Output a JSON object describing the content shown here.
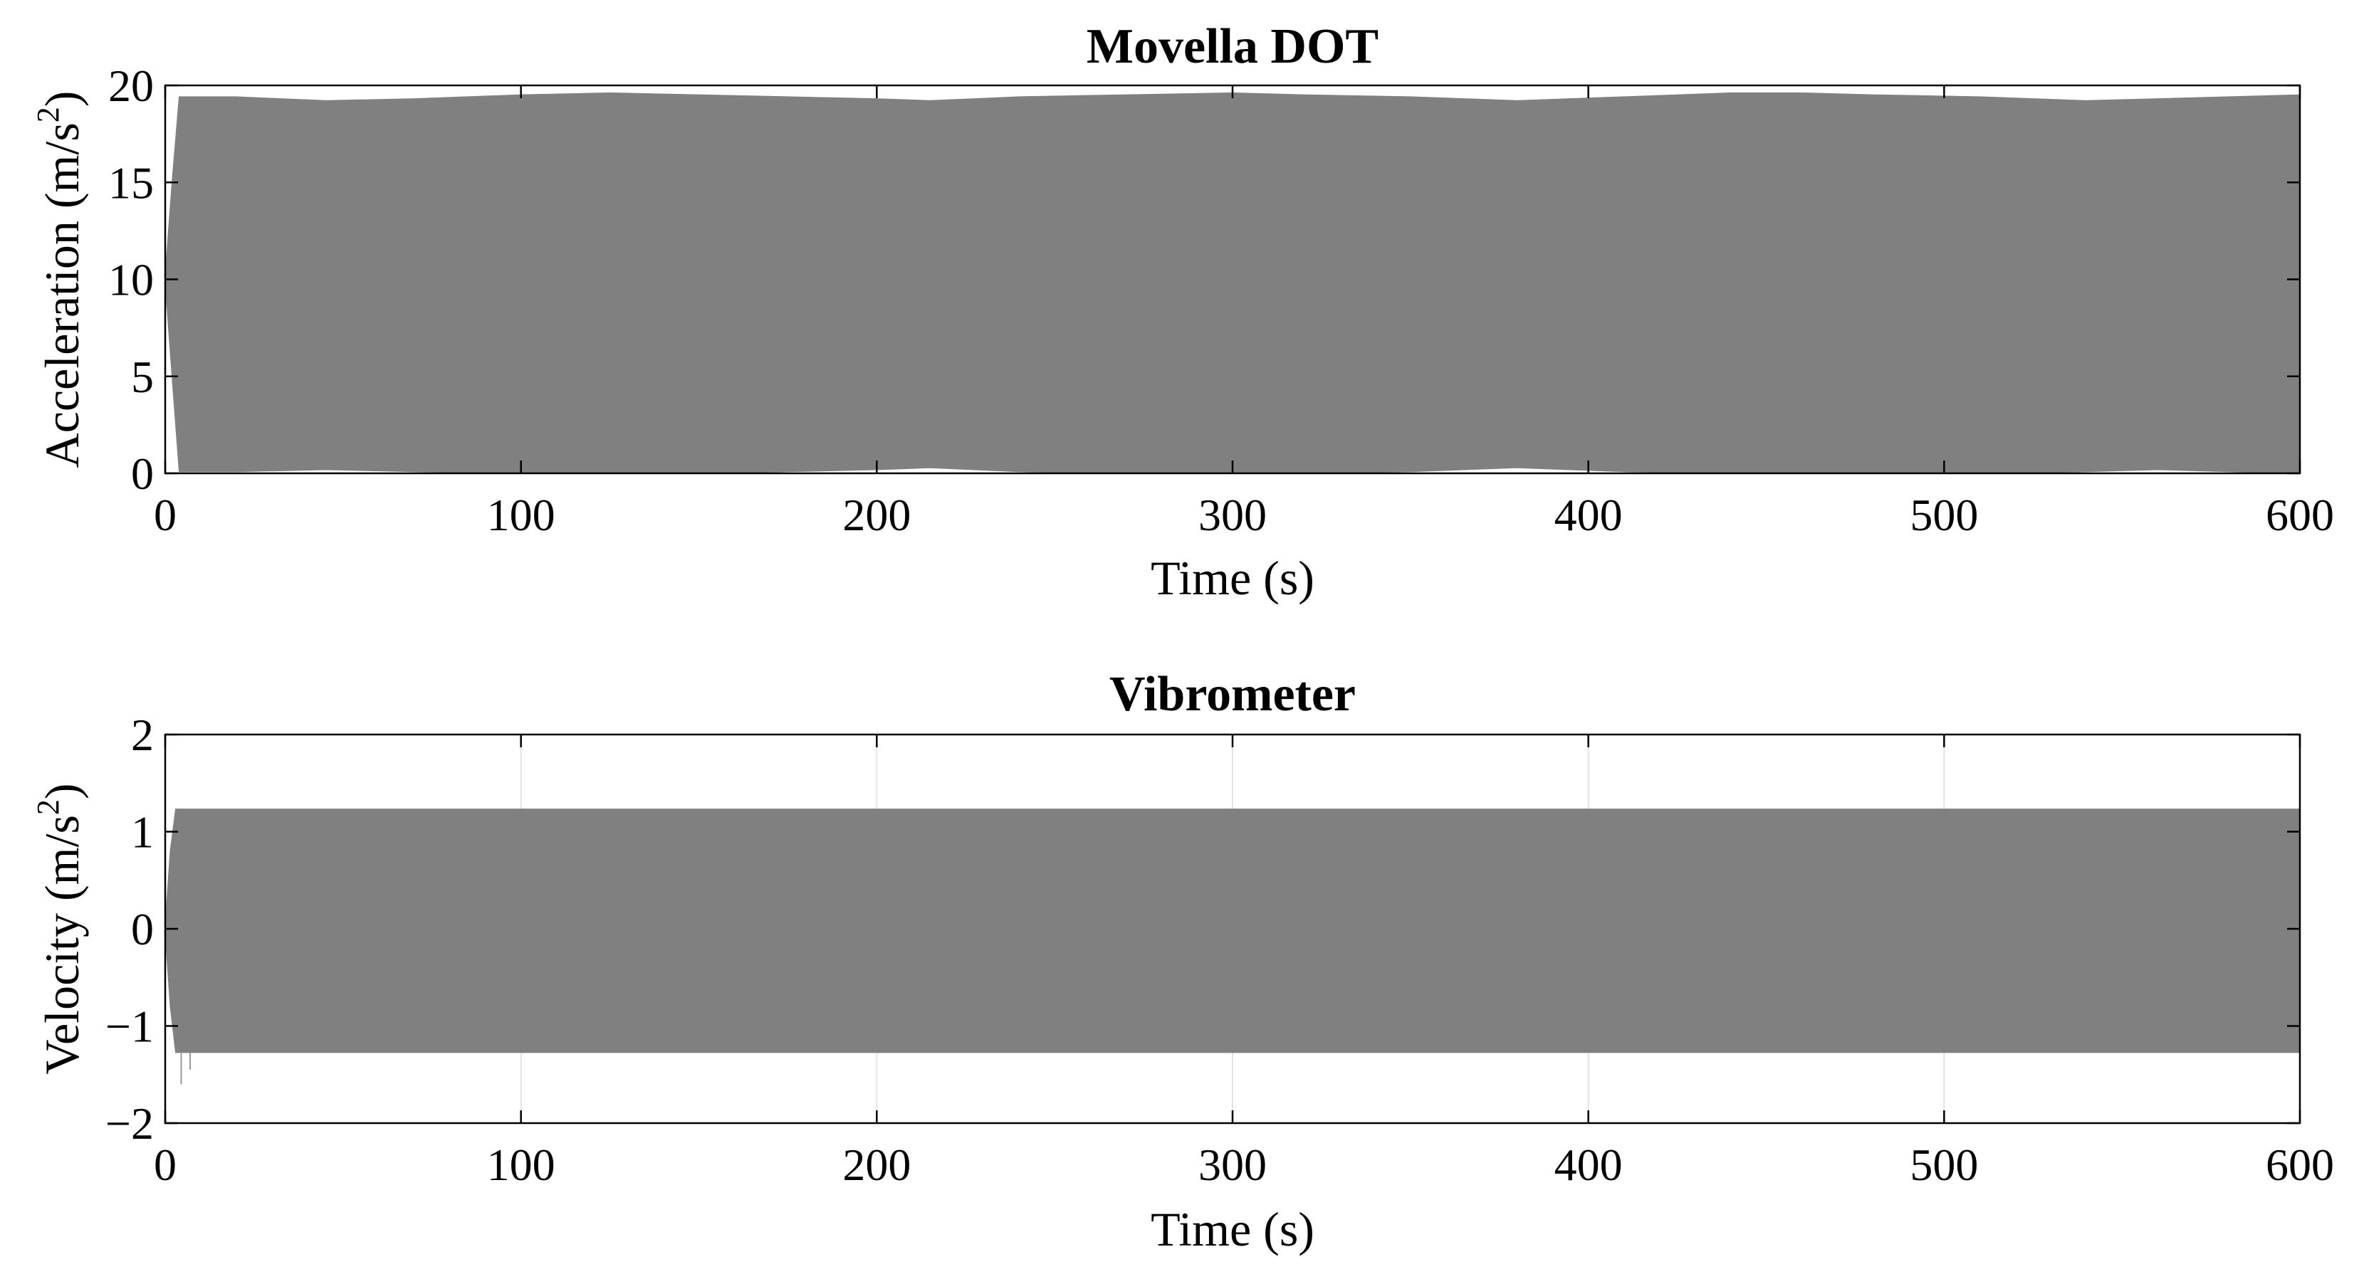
{
  "chart_data": [
    {
      "type": "line",
      "title": "Movella DOT",
      "xlabel": "Time (s)",
      "ylabel": "Acceleration (m/s",
      "ylabel_sup": "2",
      "ylabel_close": ")",
      "xlim": [
        0,
        600
      ],
      "ylim": [
        0,
        20
      ],
      "xticks": [
        0,
        100,
        200,
        300,
        400,
        500,
        600
      ],
      "yticks": [
        0,
        5,
        10,
        15,
        20
      ],
      "grid": true,
      "series": [
        {
          "style": "dense oscillation filled band",
          "color": "#808080",
          "x": [
            0,
            2,
            4,
            20,
            45,
            70,
            100,
            125,
            150,
            175,
            200,
            215,
            240,
            270,
            300,
            320,
            350,
            380,
            410,
            440,
            460,
            480,
            510,
            540,
            560,
            580,
            600
          ],
          "y_upper": [
            10,
            15,
            19.4,
            19.4,
            19.2,
            19.3,
            19.5,
            19.6,
            19.5,
            19.4,
            19.3,
            19.2,
            19.4,
            19.5,
            19.6,
            19.5,
            19.4,
            19.2,
            19.4,
            19.6,
            19.6,
            19.5,
            19.4,
            19.2,
            19.3,
            19.4,
            19.5
          ],
          "y_lower": [
            10,
            5,
            0.1,
            0.1,
            0.2,
            0.1,
            0.0,
            0.0,
            0.0,
            0.1,
            0.2,
            0.3,
            0.1,
            0.0,
            0.0,
            0.0,
            0.1,
            0.3,
            0.1,
            0.0,
            0.0,
            0.0,
            0.0,
            0.1,
            0.2,
            0.1,
            0.0
          ]
        }
      ]
    },
    {
      "type": "line",
      "title": "Vibrometer",
      "xlabel": "Time (s)",
      "ylabel": "Velocity (m/s",
      "ylabel_sup": "2",
      "ylabel_close": ")",
      "xlim": [
        0,
        600
      ],
      "ylim": [
        -2,
        2
      ],
      "xticks": [
        0,
        100,
        200,
        300,
        400,
        500,
        600
      ],
      "yticks": [
        -2,
        -1,
        0,
        1,
        2
      ],
      "ytick_labels": [
        "−2",
        "−1",
        "0",
        "1",
        "2"
      ],
      "grid": true,
      "series": [
        {
          "style": "dense oscillation filled band",
          "color": "#808080",
          "x": [
            0,
            1.5,
            3,
            600
          ],
          "y_upper": [
            0,
            0.8,
            1.23,
            1.23
          ],
          "y_lower": [
            0,
            -0.8,
            -1.27,
            -1.27
          ],
          "spikes": [
            {
              "x": 4.5,
              "y": -1.6
            },
            {
              "x": 7,
              "y": -1.45
            }
          ]
        }
      ]
    }
  ]
}
